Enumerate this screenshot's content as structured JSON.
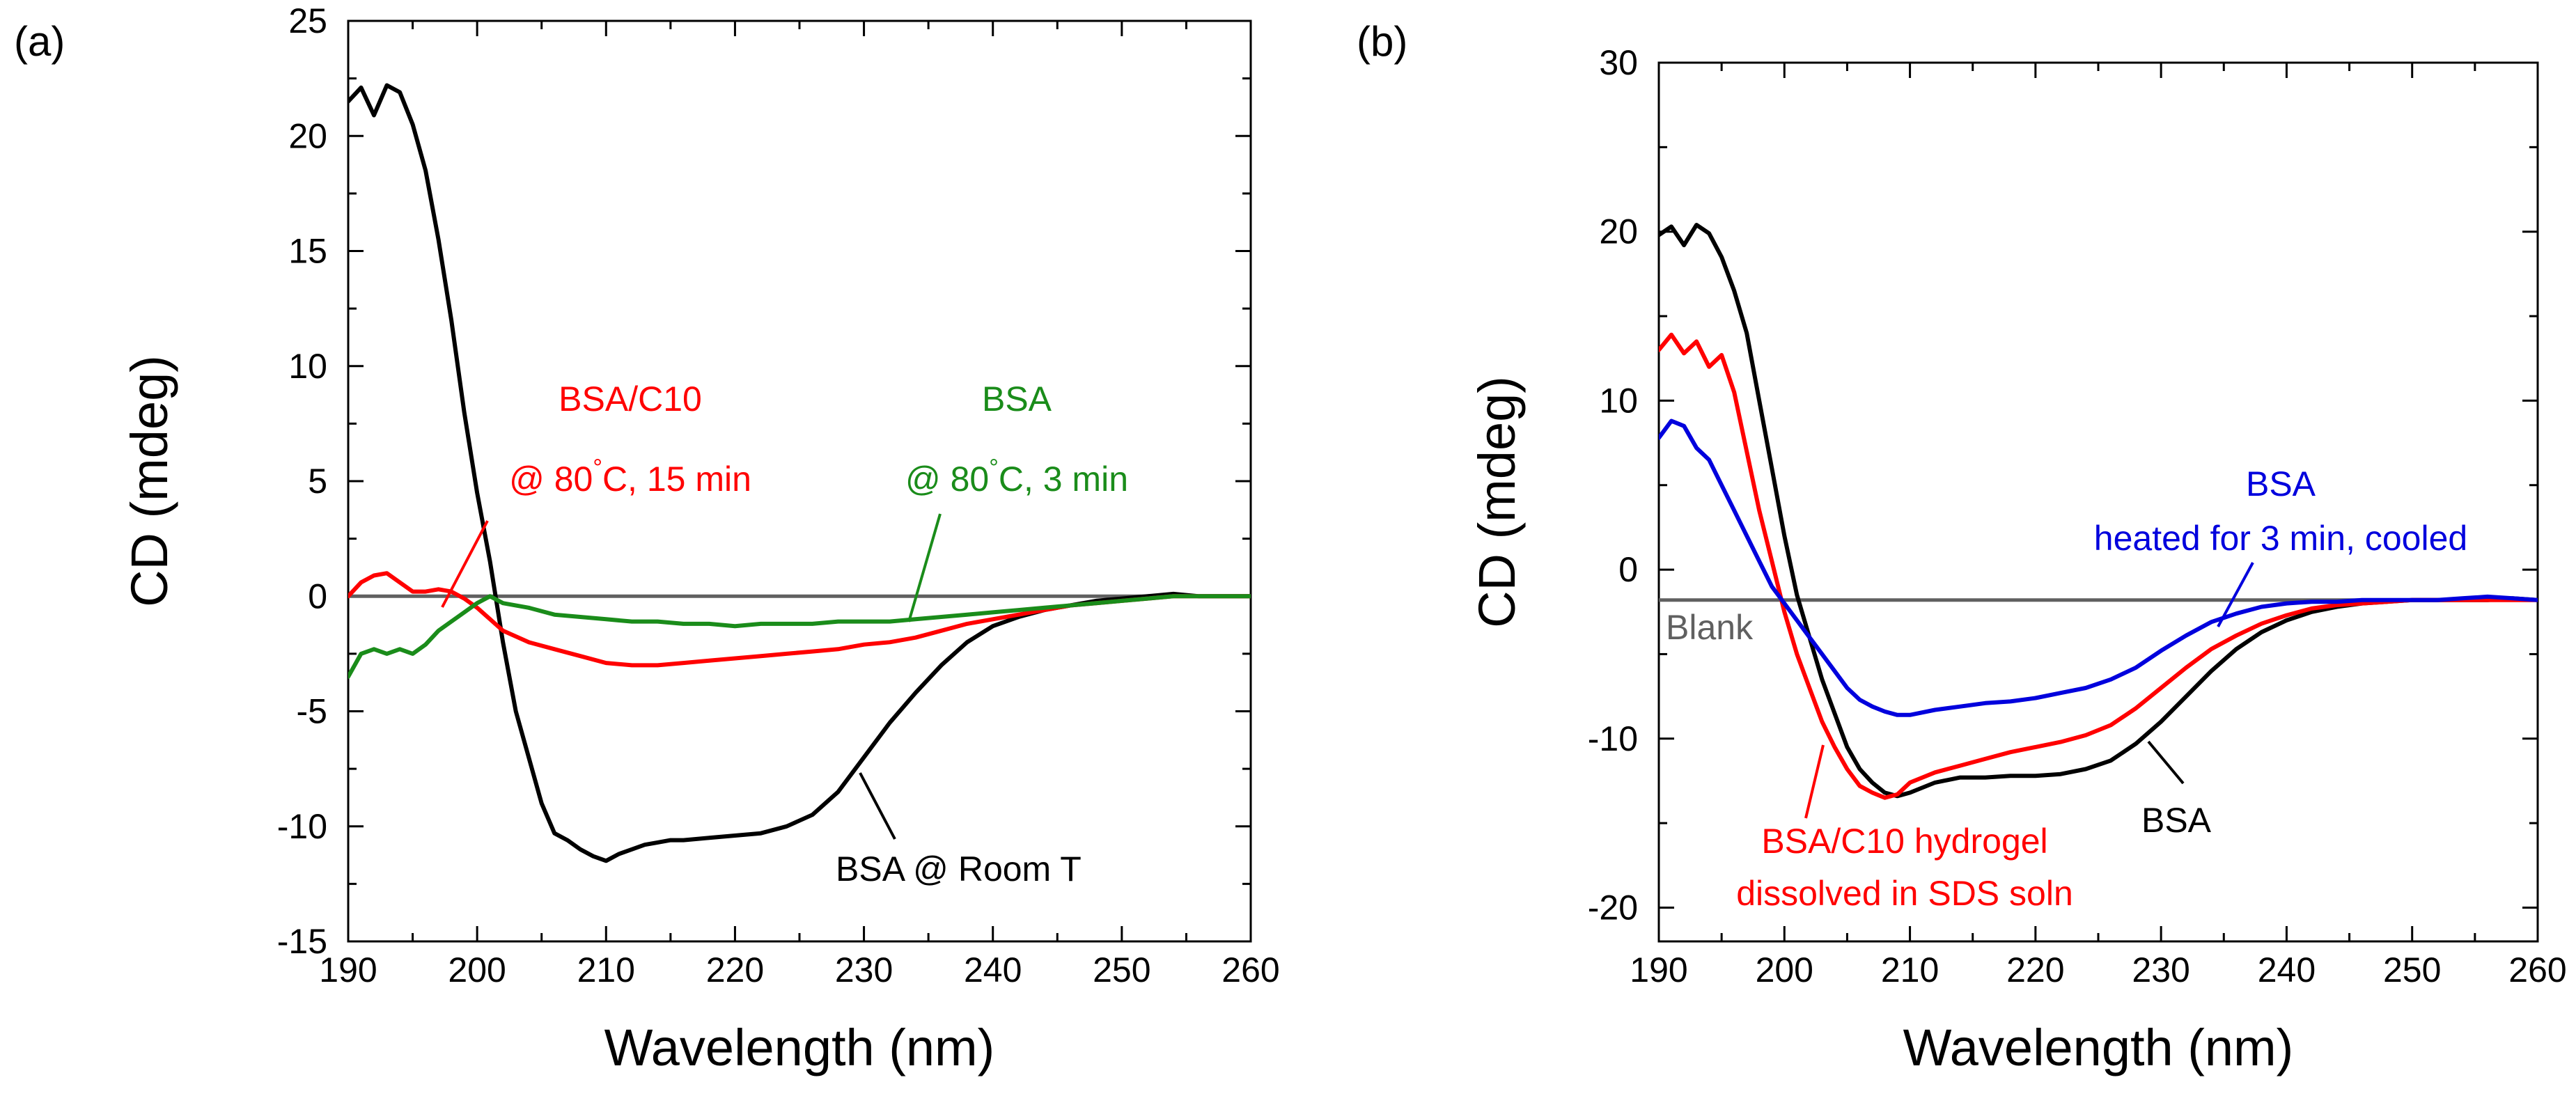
{
  "chart_data": [
    {
      "type": "line",
      "panel_label": "(a)",
      "xlabel": "Wavelength (nm)",
      "ylabel": "CD (mdeg)",
      "xlim": [
        190,
        260
      ],
      "ylim": [
        -15,
        25
      ],
      "xticks": [
        190,
        200,
        210,
        220,
        230,
        240,
        250,
        260
      ],
      "yticks": [
        25,
        20,
        15,
        10,
        5,
        0,
        -5,
        -10,
        -15
      ],
      "grid": false,
      "reference_lines": [
        {
          "name": "zero",
          "y": 0,
          "color": "#606060"
        }
      ],
      "series": [
        {
          "name": "BSA @ Room T",
          "color": "#000000",
          "x": [
            190,
            191,
            192,
            193,
            194,
            195,
            196,
            197,
            198,
            199,
            200,
            201,
            202,
            203,
            204,
            205,
            206,
            207,
            208,
            209,
            210,
            211,
            212,
            213,
            214,
            215,
            216,
            218,
            220,
            222,
            224,
            226,
            228,
            230,
            232,
            234,
            236,
            238,
            240,
            242,
            244,
            246,
            248,
            250,
            252,
            254,
            256,
            258,
            260
          ],
          "values": [
            21.5,
            22.1,
            20.9,
            22.2,
            21.9,
            20.5,
            18.5,
            15.5,
            12,
            8,
            4.5,
            1.5,
            -2,
            -5,
            -7,
            -9,
            -10.3,
            -10.6,
            -11,
            -11.3,
            -11.5,
            -11.2,
            -11,
            -10.8,
            -10.7,
            -10.6,
            -10.6,
            -10.5,
            -10.4,
            -10.3,
            -10,
            -9.5,
            -8.5,
            -7,
            -5.5,
            -4.2,
            -3,
            -2,
            -1.3,
            -0.9,
            -0.6,
            -0.4,
            -0.2,
            -0.1,
            0,
            0.1,
            0,
            0,
            0
          ]
        },
        {
          "name": "BSA/C10 @ 80°C, 15 min",
          "color": "#ff0000",
          "x": [
            190,
            191,
            192,
            193,
            194,
            195,
            196,
            197,
            198,
            199,
            200,
            201,
            202,
            204,
            206,
            208,
            210,
            212,
            214,
            216,
            218,
            220,
            222,
            224,
            226,
            228,
            230,
            232,
            234,
            236,
            238,
            240,
            242,
            244,
            246,
            248,
            250,
            252,
            254,
            256,
            258,
            260
          ],
          "values": [
            0,
            0.6,
            0.9,
            1,
            0.6,
            0.2,
            0.2,
            0.3,
            0.2,
            -0.1,
            -0.5,
            -1,
            -1.5,
            -2,
            -2.3,
            -2.6,
            -2.9,
            -3,
            -3,
            -2.9,
            -2.8,
            -2.7,
            -2.6,
            -2.5,
            -2.4,
            -2.3,
            -2.1,
            -2,
            -1.8,
            -1.5,
            -1.2,
            -1,
            -0.8,
            -0.6,
            -0.4,
            -0.3,
            -0.2,
            -0.1,
            0,
            0,
            0,
            0
          ]
        },
        {
          "name": "BSA @ 80°C, 3 min",
          "color": "#1a8c1a",
          "x": [
            190,
            191,
            192,
            193,
            194,
            195,
            196,
            197,
            198,
            199,
            200,
            201,
            202,
            204,
            206,
            208,
            210,
            212,
            214,
            216,
            218,
            220,
            222,
            224,
            226,
            228,
            230,
            232,
            234,
            236,
            238,
            240,
            242,
            244,
            246,
            248,
            250,
            252,
            254,
            256,
            258,
            260
          ],
          "values": [
            -3.5,
            -2.5,
            -2.3,
            -2.5,
            -2.3,
            -2.5,
            -2.1,
            -1.5,
            -1.1,
            -0.7,
            -0.3,
            0,
            -0.3,
            -0.5,
            -0.8,
            -0.9,
            -1,
            -1.1,
            -1.1,
            -1.2,
            -1.2,
            -1.3,
            -1.2,
            -1.2,
            -1.2,
            -1.1,
            -1.1,
            -1.1,
            -1,
            -0.9,
            -0.8,
            -0.7,
            -0.6,
            -0.5,
            -0.4,
            -0.3,
            -0.2,
            -0.1,
            0,
            0,
            0,
            0
          ]
        }
      ],
      "annotations": [
        {
          "id": "a-bsa-c10",
          "color": "#ff0000",
          "lines": [
            "BSA/C10",
            "@ 80°C, 15 min"
          ]
        },
        {
          "id": "a-bsa-heated",
          "color": "#1a8c1a",
          "lines": [
            "BSA",
            "@ 80°C, 3 min"
          ]
        },
        {
          "id": "a-bsa-room",
          "color": "#000000",
          "lines": [
            "BSA @ Room T"
          ]
        }
      ]
    },
    {
      "type": "line",
      "panel_label": "(b)",
      "xlabel": "Wavelength (nm)",
      "ylabel": "CD (mdeg)",
      "xlim": [
        190,
        260
      ],
      "ylim": [
        -22,
        30
      ],
      "xticks": [
        190,
        200,
        210,
        220,
        230,
        240,
        250,
        260
      ],
      "yticks": [
        30,
        20,
        10,
        0,
        -10,
        -20
      ],
      "grid": false,
      "reference_lines": [
        {
          "name": "Blank",
          "y": -1.8,
          "color": "#606060"
        }
      ],
      "series": [
        {
          "name": "BSA",
          "color": "#000000",
          "x": [
            190,
            191,
            192,
            193,
            194,
            195,
            196,
            197,
            198,
            199,
            200,
            201,
            202,
            203,
            204,
            205,
            206,
            207,
            208,
            209,
            210,
            212,
            214,
            216,
            218,
            220,
            222,
            224,
            226,
            228,
            230,
            232,
            234,
            236,
            238,
            240,
            242,
            244,
            246,
            248,
            250,
            252,
            254,
            256,
            258,
            260
          ],
          "values": [
            19.8,
            20.3,
            19.2,
            20.4,
            19.9,
            18.5,
            16.5,
            14,
            10,
            6,
            2,
            -1.5,
            -4,
            -6.5,
            -8.5,
            -10.5,
            -11.8,
            -12.6,
            -13.2,
            -13.4,
            -13.2,
            -12.6,
            -12.3,
            -12.3,
            -12.2,
            -12.2,
            -12.1,
            -11.8,
            -11.3,
            -10.3,
            -9,
            -7.5,
            -6,
            -4.7,
            -3.7,
            -3,
            -2.5,
            -2.2,
            -2,
            -1.9,
            -1.8,
            -1.8,
            -1.8,
            -1.8,
            -1.7,
            -1.8
          ]
        },
        {
          "name": "BSA/C10 hydrogel dissolved in SDS soln",
          "color": "#ff0000",
          "x": [
            190,
            191,
            192,
            193,
            194,
            195,
            196,
            197,
            198,
            199,
            200,
            201,
            202,
            203,
            204,
            205,
            206,
            207,
            208,
            209,
            210,
            212,
            214,
            216,
            218,
            220,
            222,
            224,
            226,
            228,
            230,
            232,
            234,
            236,
            238,
            240,
            242,
            244,
            246,
            248,
            250,
            252,
            254,
            256,
            258,
            260
          ],
          "values": [
            13,
            13.9,
            12.8,
            13.5,
            12,
            12.7,
            10.5,
            7,
            3.5,
            0.5,
            -2.5,
            -5,
            -7,
            -9,
            -10.5,
            -11.8,
            -12.8,
            -13.2,
            -13.5,
            -13.3,
            -12.6,
            -12,
            -11.6,
            -11.2,
            -10.8,
            -10.5,
            -10.2,
            -9.8,
            -9.2,
            -8.2,
            -7,
            -5.8,
            -4.7,
            -3.9,
            -3.2,
            -2.7,
            -2.3,
            -2.1,
            -2,
            -1.9,
            -1.8,
            -1.8,
            -1.8,
            -1.8,
            -1.8,
            -1.8
          ]
        },
        {
          "name": "BSA heated for 3 min, cooled",
          "color": "#0000dd",
          "x": [
            190,
            191,
            192,
            193,
            194,
            195,
            196,
            197,
            198,
            199,
            200,
            201,
            202,
            203,
            204,
            205,
            206,
            207,
            208,
            209,
            210,
            212,
            214,
            216,
            218,
            220,
            222,
            224,
            226,
            228,
            230,
            232,
            234,
            236,
            238,
            240,
            242,
            244,
            246,
            248,
            250,
            252,
            254,
            256,
            258,
            260
          ],
          "values": [
            7.8,
            8.8,
            8.5,
            7.2,
            6.5,
            5,
            3.5,
            2,
            0.5,
            -1,
            -2,
            -3,
            -4,
            -5,
            -6,
            -7,
            -7.7,
            -8.1,
            -8.4,
            -8.6,
            -8.6,
            -8.3,
            -8.1,
            -7.9,
            -7.8,
            -7.6,
            -7.3,
            -7,
            -6.5,
            -5.8,
            -4.8,
            -3.9,
            -3.1,
            -2.6,
            -2.2,
            -2,
            -1.9,
            -1.9,
            -1.8,
            -1.8,
            -1.8,
            -1.8,
            -1.7,
            -1.6,
            -1.7,
            -1.8
          ]
        }
      ],
      "annotations": [
        {
          "id": "b-bsa-heated",
          "color": "#0000dd",
          "lines": [
            "BSA",
            "heated for 3 min, cooled"
          ]
        },
        {
          "id": "b-blank",
          "color": "#606060",
          "lines": [
            "Blank"
          ]
        },
        {
          "id": "b-bsa",
          "color": "#000000",
          "lines": [
            "BSA"
          ]
        },
        {
          "id": "b-bsa-c10",
          "color": "#ff0000",
          "lines": [
            "BSA/C10 hydrogel",
            "dissolved in SDS soln"
          ]
        }
      ]
    }
  ]
}
